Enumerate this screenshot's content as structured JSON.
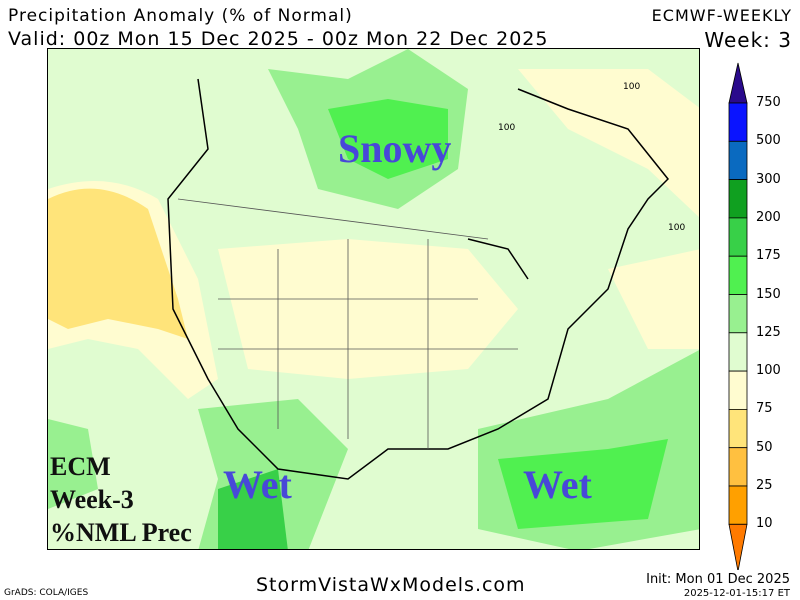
{
  "header": {
    "title": "Precipitation Anomaly (% of Normal)",
    "valid": "Valid: 00z Mon 15 Dec 2025 - 00z Mon 22 Dec 2025",
    "model": "ECMWF-WEEKLY",
    "week": "Week: 3"
  },
  "annotations": {
    "north": "Snowy",
    "southwest": "Wet",
    "southeast": "Wet",
    "label_lines": [
      "ECM",
      "Week-3",
      "%NML Prec"
    ]
  },
  "contour_labels": [
    "100",
    "100",
    "100"
  ],
  "colorbar": {
    "labels": [
      "750",
      "500",
      "300",
      "200",
      "175",
      "150",
      "125",
      "100",
      "75",
      "50",
      "25",
      "10"
    ],
    "colors": [
      "#2a0a8c",
      "#0a14ff",
      "#0a6ac0",
      "#10a020",
      "#38d048",
      "#50f050",
      "#98f090",
      "#e0fcd0",
      "#fffcd0",
      "#ffe47a",
      "#ffc040",
      "#ffa000",
      "#ff7a00"
    ]
  },
  "footer": {
    "site": "StormVistaWxModels.com",
    "grads": "GrADS: COLA/IGES",
    "init": "Init: Mon 01 Dec 2025",
    "stamp": "2025-12-01-15:17 ET"
  }
}
